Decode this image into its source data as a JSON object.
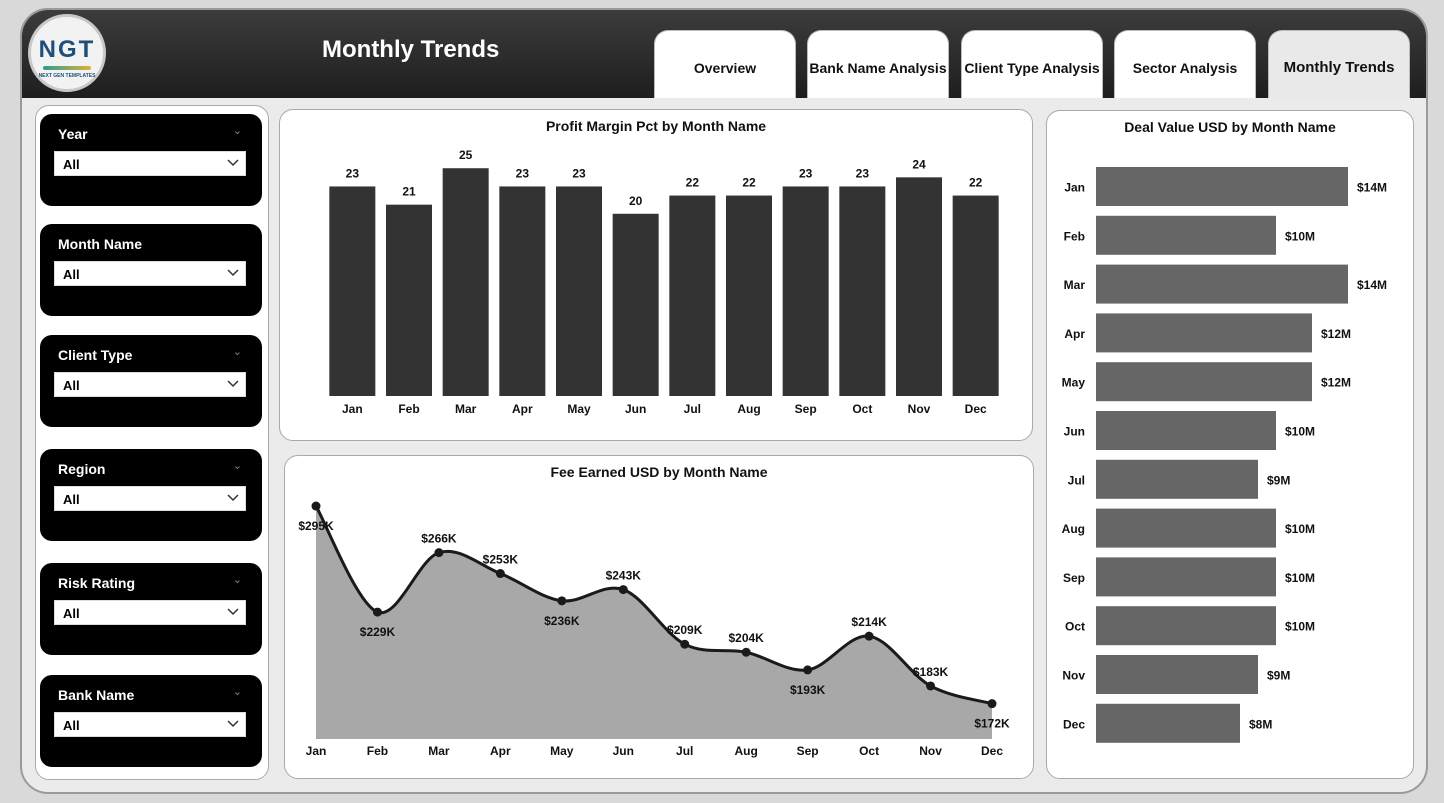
{
  "header": {
    "logo_text": "NGT",
    "logo_subtext": "NEXT GEN TEMPLATES",
    "title": "Monthly Trends",
    "tabs": [
      {
        "label": "Overview",
        "active": false
      },
      {
        "label": "Bank Name Analysis",
        "active": false
      },
      {
        "label": "Client Type Analysis",
        "active": false
      },
      {
        "label": "Sector Analysis",
        "active": false
      },
      {
        "label": "Monthly Trends",
        "active": true
      }
    ]
  },
  "filters": [
    {
      "label": "Year",
      "value": "All"
    },
    {
      "label": "Month Name",
      "value": "All"
    },
    {
      "label": "Client Type",
      "value": "All"
    },
    {
      "label": "Region",
      "value": "All"
    },
    {
      "label": "Risk Rating",
      "value": "All"
    },
    {
      "label": "Bank Name",
      "value": "All"
    }
  ],
  "colors": {
    "profit_bar": "#333333",
    "deal_bar": "#666666",
    "fee_area": "#a8a8a8",
    "fee_line": "#1a1a1a"
  },
  "chart_data": [
    {
      "type": "bar",
      "title": "Profit Margin Pct by Month Name",
      "categories": [
        "Jan",
        "Feb",
        "Mar",
        "Apr",
        "May",
        "Jun",
        "Jul",
        "Aug",
        "Sep",
        "Oct",
        "Nov",
        "Dec"
      ],
      "values": [
        23,
        21,
        25,
        23,
        23,
        20,
        22,
        22,
        23,
        23,
        24,
        22
      ],
      "data_labels": [
        "23",
        "21",
        "25",
        "23",
        "23",
        "20",
        "22",
        "22",
        "23",
        "23",
        "24",
        "22"
      ],
      "ylim": [
        0,
        27
      ]
    },
    {
      "type": "area",
      "title": "Fee Earned USD by Month Name",
      "categories": [
        "Jan",
        "Feb",
        "Mar",
        "Apr",
        "May",
        "Jun",
        "Jul",
        "Aug",
        "Sep",
        "Oct",
        "Nov",
        "Dec"
      ],
      "values": [
        295000,
        229000,
        266000,
        253000,
        236000,
        243000,
        209000,
        204000,
        193000,
        214000,
        183000,
        172000
      ],
      "data_labels": [
        "$295K",
        "$229K",
        "$266K",
        "$253K",
        "$236K",
        "$243K",
        "$209K",
        "$204K",
        "$193K",
        "$214K",
        "$183K",
        "$172K"
      ],
      "ylim": [
        150000,
        300000
      ]
    },
    {
      "type": "bar",
      "orientation": "horizontal",
      "title": "Deal Value USD by Month Name",
      "categories": [
        "Jan",
        "Feb",
        "Mar",
        "Apr",
        "May",
        "Jun",
        "Jul",
        "Aug",
        "Sep",
        "Oct",
        "Nov",
        "Dec"
      ],
      "values": [
        14000000,
        10000000,
        14000000,
        12000000,
        12000000,
        10000000,
        9000000,
        10000000,
        10000000,
        10000000,
        9000000,
        8000000
      ],
      "data_labels": [
        "$14M",
        "$10M",
        "$14M",
        "$12M",
        "$12M",
        "$10M",
        "$9M",
        "$10M",
        "$10M",
        "$10M",
        "$9M",
        "$8M"
      ],
      "xlim": [
        0,
        14500000
      ]
    }
  ]
}
